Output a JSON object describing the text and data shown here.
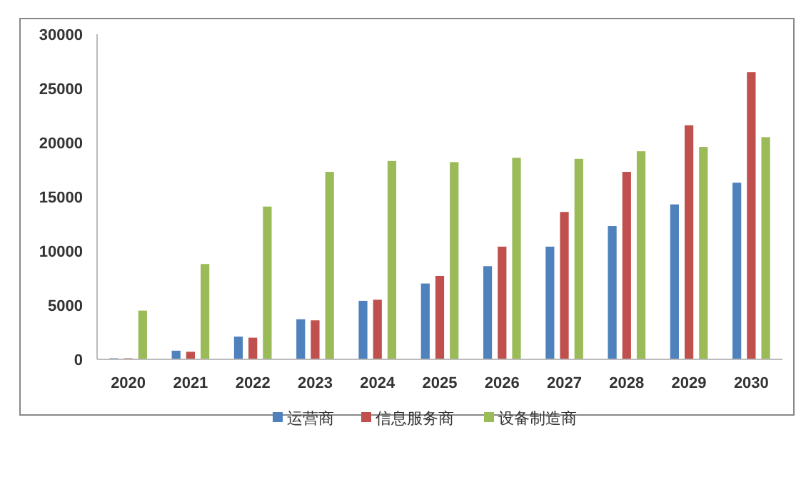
{
  "chart_data": {
    "type": "bar",
    "categories": [
      "2020",
      "2021",
      "2022",
      "2023",
      "2024",
      "2025",
      "2026",
      "2027",
      "2028",
      "2029",
      "2030"
    ],
    "series": [
      {
        "name": "运营商",
        "color": "#4f81bd",
        "values": [
          100,
          800,
          2100,
          3700,
          5400,
          7000,
          8600,
          10400,
          12300,
          14300,
          16300
        ]
      },
      {
        "name": "信息服务商",
        "color": "#c0504d",
        "values": [
          100,
          700,
          2000,
          3600,
          5500,
          7700,
          10400,
          13600,
          17300,
          21600,
          26500
        ]
      },
      {
        "name": "设备制造商",
        "color": "#9bbb59",
        "values": [
          4500,
          8800,
          14100,
          17300,
          18300,
          18200,
          18600,
          18500,
          19200,
          19600,
          20500
        ]
      }
    ],
    "ylim": [
      0,
      30000
    ],
    "yticks": [
      0,
      5000,
      10000,
      15000,
      20000,
      25000,
      30000
    ],
    "grid": false,
    "legend": "bottom"
  }
}
